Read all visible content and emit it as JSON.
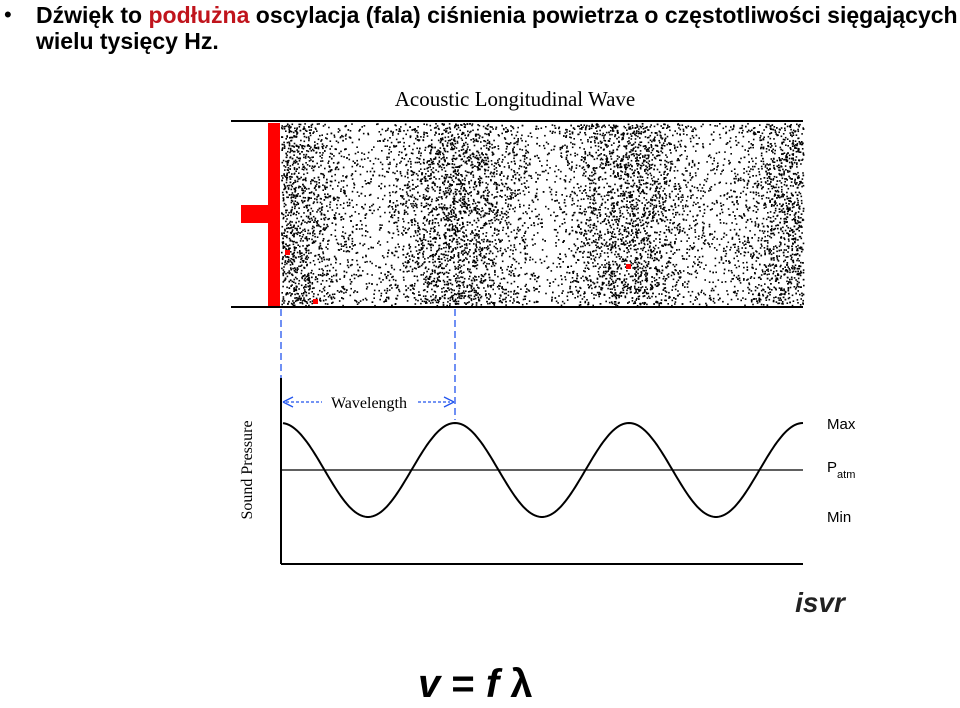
{
  "bullet": {
    "marker": "•",
    "text_before": "Dźwięk to ",
    "highlight": "podłużna",
    "text_after": " oscylacja (fala) ciśnienia powietrza o częstotliwości sięgających wielu tysięcy Hz.",
    "highlight_color": "#c0141c"
  },
  "figure": {
    "title": "Acoustic Longitudinal Wave",
    "wavelength_label": "Wavelength",
    "y_axis_label": "Sound Pressure",
    "level_max": "Max",
    "level_patm_main": "P",
    "level_patm_sub": "atm",
    "level_min": "Min",
    "logo": "isvr",
    "piston_color": "#ff0000"
  },
  "formula": {
    "v": "v",
    "eq": " = ",
    "f": "f",
    "lambda": "λ"
  }
}
